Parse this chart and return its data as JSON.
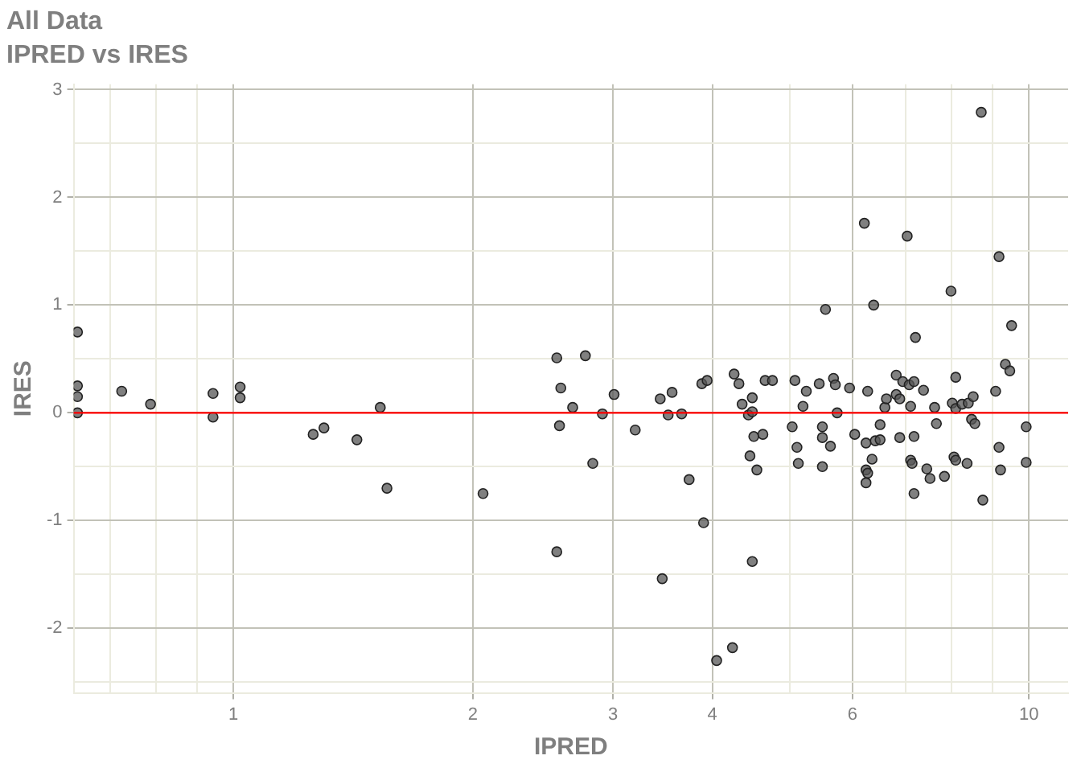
{
  "chart_data": {
    "type": "scatter",
    "title": "All Data",
    "subtitle": "IPRED vs IRES",
    "xlabel": "IPRED",
    "ylabel": "IRES",
    "log": "x",
    "grid": true,
    "legend": false,
    "marker": "circle",
    "color": "#555555",
    "xlim": [
      0.63,
      11.2
    ],
    "ylim": [
      -2.6,
      3.05
    ],
    "xticks": [
      {
        "value": 0.7,
        "label": null
      },
      {
        "value": 0.8,
        "label": null
      },
      {
        "value": 0.9,
        "label": null
      },
      1,
      2,
      3,
      4,
      {
        "value": 5,
        "label": null
      },
      6,
      {
        "value": 7,
        "label": null
      },
      {
        "value": 8,
        "label": null
      },
      {
        "value": 9,
        "label": null
      },
      10
    ],
    "yticks": [
      {
        "value": -2.5,
        "label": null
      },
      -2,
      {
        "value": -1.5,
        "label": null
      },
      -1,
      {
        "value": -0.5,
        "label": null
      },
      0,
      {
        "value": 0.5,
        "label": null
      },
      1,
      {
        "value": 1.5,
        "label": null
      },
      2,
      {
        "value": 2.5,
        "label": null
      },
      3
    ],
    "ref_lines": [
      {
        "axis": "y",
        "value": 0,
        "color": "#ff0000"
      }
    ],
    "x": [
      0.637,
      0.637,
      0.637,
      0.637,
      0.724,
      0.787,
      0.943,
      0.943,
      1.02,
      1.02,
      1.26,
      1.3,
      1.43,
      1.53,
      1.56,
      2.06,
      2.55,
      2.58,
      2.57,
      2.55,
      2.67,
      2.77,
      2.83,
      2.91,
      3.01,
      3.2,
      3.44,
      3.46,
      3.52,
      3.56,
      3.66,
      3.74,
      3.88,
      3.9,
      3.94,
      4.05,
      4.24,
      4.26,
      4.32,
      4.36,
      4.44,
      4.46,
      4.49,
      4.49,
      4.49,
      4.51,
      4.55,
      4.63,
      4.66,
      4.76,
      5.04,
      5.08,
      5.11,
      5.13,
      5.2,
      5.25,
      5.45,
      5.5,
      5.5,
      5.5,
      5.55,
      5.63,
      5.68,
      5.71,
      5.74,
      5.95,
      6.04,
      6.21,
      6.24,
      6.24,
      6.24,
      6.27,
      6.27,
      6.35,
      6.38,
      6.41,
      6.5,
      6.5,
      6.59,
      6.62,
      6.81,
      6.81,
      6.88,
      6.88,
      6.94,
      7.03,
      7.07,
      7.1,
      7.1,
      7.13,
      7.17,
      7.17,
      7.17,
      7.2,
      7.37,
      7.44,
      7.51,
      7.61,
      7.65,
      7.83,
      7.98,
      8.01,
      8.05,
      8.09,
      8.09,
      8.09,
      8.24,
      8.36,
      8.39,
      8.47,
      8.51,
      8.55,
      8.71,
      8.75,
      9.08,
      9.17,
      9.17,
      9.21,
      9.34,
      9.46,
      9.51,
      9.92,
      9.92
    ],
    "values": [
      0.75,
      0.25,
      0.15,
      0.0,
      0.2,
      0.08,
      0.18,
      -0.04,
      0.24,
      0.14,
      -0.2,
      -0.14,
      -0.25,
      0.05,
      -0.7,
      -0.75,
      0.51,
      0.23,
      -0.12,
      -1.29,
      0.05,
      0.53,
      -0.47,
      -0.01,
      0.17,
      -0.16,
      0.13,
      -1.54,
      -0.02,
      0.19,
      -0.01,
      -0.62,
      0.27,
      -1.02,
      0.3,
      -2.3,
      -2.18,
      0.36,
      0.27,
      0.08,
      -0.02,
      -0.4,
      0.14,
      0.01,
      -1.38,
      -0.22,
      -0.53,
      -0.2,
      0.3,
      0.3,
      -0.13,
      0.3,
      -0.32,
      -0.47,
      0.06,
      0.2,
      0.27,
      -0.13,
      -0.23,
      -0.5,
      0.96,
      -0.31,
      0.32,
      0.26,
      0.0,
      0.23,
      -0.2,
      1.76,
      -0.28,
      -0.53,
      -0.65,
      0.2,
      -0.56,
      -0.43,
      1.0,
      -0.26,
      -0.11,
      -0.25,
      0.05,
      0.13,
      0.35,
      0.17,
      0.13,
      -0.23,
      0.29,
      1.64,
      0.26,
      0.06,
      -0.44,
      -0.47,
      0.29,
      -0.22,
      -0.75,
      0.7,
      0.21,
      -0.52,
      -0.61,
      0.05,
      -0.1,
      -0.59,
      1.13,
      0.09,
      -0.41,
      0.33,
      0.04,
      -0.44,
      0.08,
      -0.47,
      0.09,
      -0.06,
      0.15,
      -0.1,
      2.79,
      -0.81,
      0.2,
      1.45,
      -0.32,
      -0.53,
      0.45,
      0.39,
      0.81,
      -0.13,
      -0.46
    ]
  }
}
